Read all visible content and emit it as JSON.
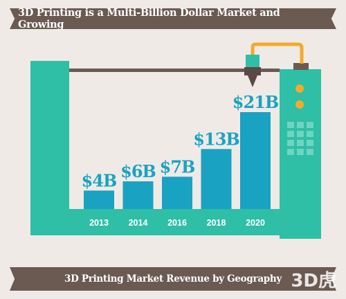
{
  "header": {
    "title": "3D Printing is a Multi-Billion Dollar Market and Growing"
  },
  "footer": {
    "title": "3D Printing Market Revenue by Geography"
  },
  "watermark": {
    "text": "3D虎"
  },
  "colors": {
    "bar": "#1aa2c3",
    "frame": "#2fbea6",
    "banner": "#6b5a52",
    "arm": "#f3aa2a",
    "rail": "#6b5a52"
  },
  "chart_data": {
    "type": "bar",
    "categories": [
      "2013",
      "2014",
      "2016",
      "2018",
      "2020"
    ],
    "values": [
      4,
      6,
      7,
      13,
      21
    ],
    "data_labels": [
      "$4B",
      "$6B",
      "$7B",
      "$13B",
      "$21B"
    ],
    "title": "3D Printing is a Multi-Billion Dollar Market and Growing",
    "xlabel": "",
    "ylabel": "",
    "grid": false
  }
}
